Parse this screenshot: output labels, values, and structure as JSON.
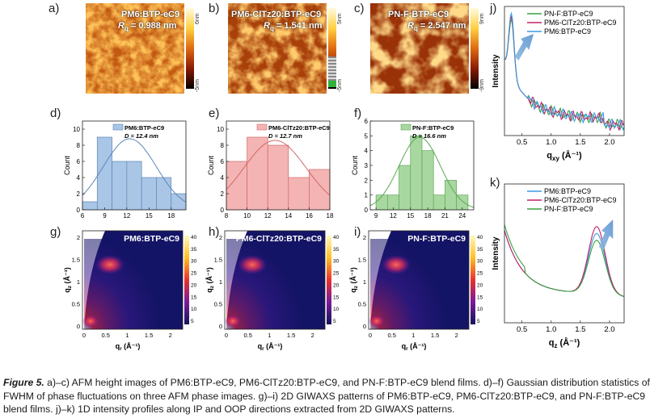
{
  "afm": [
    {
      "label": "a)",
      "sample": "PM6:BTP-eC9",
      "rq_prefix": "R",
      "rq_sub": "q",
      "rq_value": " = 0.988 nm",
      "scale_max": "6nm",
      "scale_min": "-5nm"
    },
    {
      "label": "b)",
      "sample": "PM6-ClTz20:BTP-eC9",
      "rq_prefix": "R",
      "rq_sub": "q",
      "rq_value": " = 1.541 nm",
      "scale_max": "5nm",
      "scale_min": "-5nm"
    },
    {
      "label": "c)",
      "sample": "PN-F:BTP-eC9",
      "rq_prefix": "R",
      "rq_sub": "q",
      "rq_value": " = 2.547 nm",
      "scale_max": "9nm",
      "scale_min": "-9nm"
    }
  ],
  "hist": [
    {
      "label": "d)",
      "legend": "PM6:BTP-eC9",
      "d_text": "D = 12.4 nm",
      "ylabel": "Count",
      "color": "#a9c6e6",
      "edge": "#5f86b5",
      "bins": [
        6,
        8,
        10,
        12,
        14,
        16,
        18,
        20
      ],
      "counts": [
        1,
        9,
        6,
        6,
        4,
        4,
        2
      ],
      "xticks": [
        "6",
        "9",
        "12",
        "15",
        "18"
      ],
      "xtick_vals": [
        6,
        9,
        12,
        15,
        18
      ],
      "xlim": [
        6,
        20
      ],
      "yticks": [
        "0",
        "2",
        "4",
        "6",
        "8",
        "10"
      ],
      "ymax": 11,
      "fit_mu": 12.4,
      "fit_sigma": 3.6,
      "fit_amp": 8.8
    },
    {
      "label": "e)",
      "legend": "PM6-ClTz20:BTP-eC9",
      "d_text": "D = 12.7 nm",
      "ylabel": "Count",
      "color": "#f4b4b4",
      "edge": "#d06868",
      "bins": [
        8,
        10,
        12,
        14,
        16,
        18
      ],
      "counts": [
        6,
        9,
        8,
        4,
        5
      ],
      "xticks": [
        "8",
        "10",
        "12",
        "14",
        "16",
        "18"
      ],
      "xtick_vals": [
        8,
        10,
        12,
        14,
        16,
        18
      ],
      "xlim": [
        8,
        18
      ],
      "yticks": [
        "0",
        "2",
        "4",
        "6",
        "8",
        "10"
      ],
      "ymax": 11,
      "fit_mu": 12.7,
      "fit_sigma": 3.0,
      "fit_amp": 8.6
    },
    {
      "label": "f)",
      "legend": "PN-F:BTP-eC9",
      "d_text": "D = 16.6 nm",
      "ylabel": "Count",
      "color": "#a8d8a0",
      "edge": "#5ea656",
      "bins": [
        9,
        11,
        13,
        15,
        17,
        19,
        21,
        23,
        25
      ],
      "counts": [
        1,
        1,
        3,
        5,
        4,
        1,
        2,
        1
      ],
      "xticks": [
        "9",
        "12",
        "15",
        "18",
        "21",
        "24"
      ],
      "xtick_vals": [
        9,
        12,
        15,
        18,
        21,
        24
      ],
      "xlim": [
        8,
        26
      ],
      "yticks": [
        "0",
        "1",
        "2",
        "3",
        "4",
        "5",
        "6"
      ],
      "ymax": 6,
      "fit_mu": 16.6,
      "fit_sigma": 3.6,
      "fit_amp": 4.9
    }
  ],
  "giwaxs": [
    {
      "label": "g)",
      "sample": "PM6:BTP-eC9"
    },
    {
      "label": "h)",
      "sample": "PM6-ClTz20:BTP-eC9"
    },
    {
      "label": "i)",
      "sample": "PN-F:BTP-eC9"
    }
  ],
  "giwaxs_axes": {
    "xlabel": "q",
    "xsub": "r",
    "xunit": " (Å⁻¹)",
    "ylabel": "q",
    "ysub": "z",
    "yunit": " (Å⁻¹)",
    "xticks": [
      "0",
      "0.5",
      "1",
      "1.5",
      "2"
    ],
    "yticks": [
      "0",
      "0.5",
      "1",
      "1.5",
      "2"
    ],
    "cbar_ticks": [
      "40",
      "35",
      "30",
      "25",
      "20",
      "15",
      "10",
      "5"
    ]
  },
  "profiles": [
    {
      "label": "j)",
      "ylabel": "Intensity",
      "xlabel": "q",
      "xsub": "xy",
      "xunit": " (Å⁻¹)",
      "xticks": [
        "0.5",
        "1.0",
        "1.5",
        "2.0"
      ],
      "legend": [
        {
          "name": "PN-F:BTP-eC9",
          "color": "#3aa040"
        },
        {
          "name": "PM6-ClTz20:BTP-eC9",
          "color": "#c4206a"
        },
        {
          "name": "PM6:BTP-eC9",
          "color": "#3b9ae0"
        }
      ]
    },
    {
      "label": "k)",
      "ylabel": "Intensity",
      "xlabel": "q",
      "xsub": "z",
      "xunit": " (Å⁻¹)",
      "xticks": [
        "0.5",
        "1.0",
        "1.5",
        "2.0"
      ],
      "legend": [
        {
          "name": "PM6:BTP-eC9",
          "color": "#3b9ae0"
        },
        {
          "name": "PM6-ClTz20:BTP-eC9",
          "color": "#c4206a"
        },
        {
          "name": "PN-F:BTP-eC9",
          "color": "#3aa040"
        }
      ]
    }
  ],
  "caption": {
    "fig": "Figure 5.",
    "text": " a)–c) AFM height images of PM6:BTP-eC9, PM6-ClTz20:BTP-eC9, and PN-F:BTP-eC9 blend films. d)–f) Gaussian distribution statistics of FWHM of phase fluctuations on three AFM phase images. g)–i) 2D GIWAXS patterns of PM6:BTP-eC9, PM6-ClTz20:BTP-eC9, and PN-F:BTP-eC9 blend films. j)–k) 1D intensity profiles along IP and OOP directions extracted from 2D GIWAXS patterns."
  }
}
